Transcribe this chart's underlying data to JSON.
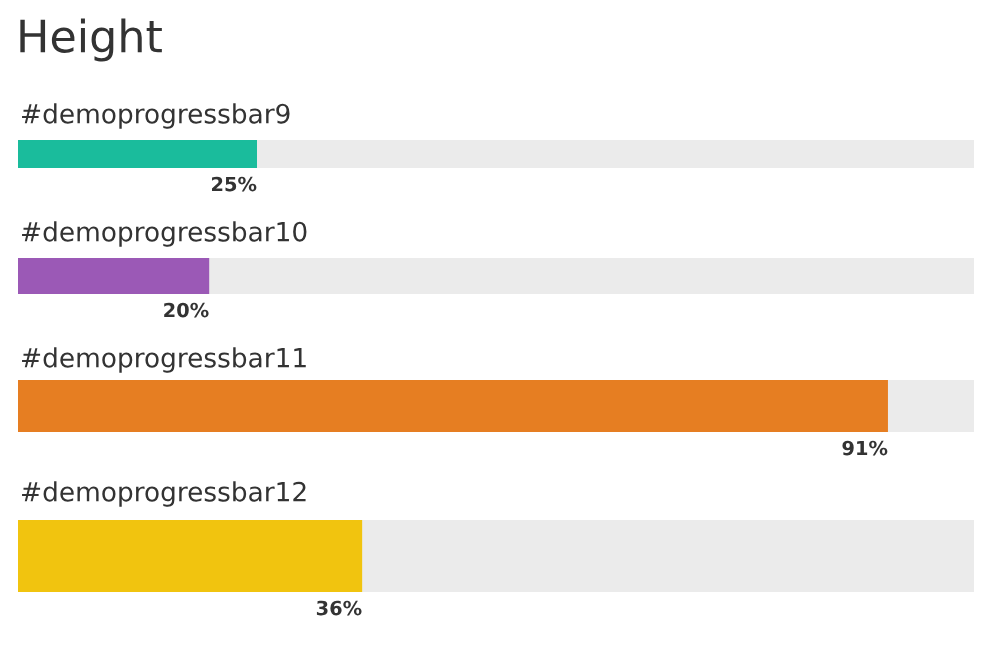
{
  "chart_data": {
    "type": "bar",
    "orientation": "horizontal",
    "title": "Height",
    "categories": [
      "#demoprogressbar9",
      "#demoprogressbar10",
      "#demoprogressbar11",
      "#demoprogressbar12"
    ],
    "values": [
      25,
      20,
      91,
      36
    ],
    "colors": [
      "#1abc9c",
      "#9b59b6",
      "#e67e22",
      "#f1c40f"
    ],
    "value_labels": [
      "25%",
      "20%",
      "91%",
      "36%"
    ],
    "xlim": [
      0,
      100
    ],
    "tick_labels": false,
    "legend": false
  }
}
